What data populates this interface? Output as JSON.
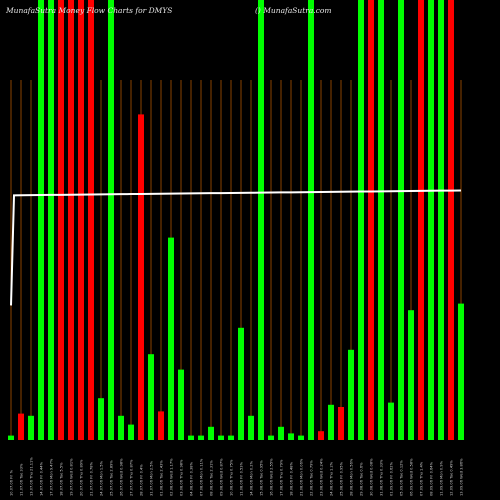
{
  "chart_data": {
    "type": "bar",
    "title": "MunafaSutra Money Flow  Charts for DMYS",
    "watermark": "() MunafaSutra.com",
    "colors": {
      "background": "#000000",
      "up": "#00ff00",
      "down": "#ff0000",
      "grid": "#8b4500",
      "line": "#ffffff"
    },
    "grid": true,
    "ylim": [
      0,
      100
    ],
    "categories": [
      "10.07.06 Fri %",
      "11.07.06 Tue 33%",
      "13.07.06 Thu 21.11%",
      "14.07.06 Fri 0.44%",
      "17.07.06 Mon 9.47%",
      "18.07.06 Tue 5.5%",
      "19.07.06 Wed 0.81%",
      "20.07.06 Thu 0.89%",
      "21.07.06 Fri 0.78%",
      "24.07.06 Mon 1.5%",
      "25.07.06 Tue 2.89%",
      "26.07.06 Wed 0.98%",
      "27.07.06 Thu 0.87%",
      "28.07.06 Fri 0.4%",
      "31.07.06 Mon 2.5%",
      "01.08.06 Tue 2.43%",
      "02.08.06 Wed 1.17%",
      "03.08.06 Thu 0.98%",
      "04.08.06 Fri 0.38%",
      "07.08.06 Mon 0.11%",
      "08.08.06 Tue 2.31%",
      "09.08.06 Wed 0.87%",
      "10.08.06 Thu 0.75%",
      "11.08.06 Fri 0.53%",
      "14.08.06 Mon 0.2%",
      "15.08.06 Tue 0.95%",
      "16.08.06 Wed 2.55%",
      "17.08.06 Thu 0.79%",
      "18.08.06 Fri 0.48%",
      "21.08.06 Mon 0.06%",
      "22.08.06 Tue 0.79%",
      "23.08.06 Wed 0.24%",
      "24.08.06 Thu 1.2%",
      "25.08.06 Fri 0.95%",
      "28.08.06 Mon 0.56%",
      "29.08.06 Tue 0.6%",
      "30.08.06 Wed 0.08%",
      "31.08.06 Thu 0.33%",
      "01.09.06 Fri 0.62%",
      "05.09.06 Tue 0.12%",
      "06.09.06 Wed 0.58%",
      "07.09.06 Thu 1.4%",
      "08.09.06 Fri 0.64%",
      "11.09.06 Mon 0.9%",
      "12.09.06 Tue 0.49%",
      "13.09.06 Wed 3.86%"
    ],
    "values": [
      1,
      6,
      5.5,
      100,
      100,
      100,
      100,
      100,
      100,
      9.5,
      100,
      5.5,
      3.5,
      74,
      19.5,
      6.5,
      46,
      16,
      1,
      1,
      3,
      1,
      1,
      25.5,
      5.5,
      100,
      1,
      3,
      1.5,
      1,
      100,
      2,
      8,
      7.5,
      20.5,
      100,
      100,
      100,
      8.5,
      100,
      29.5,
      100,
      100,
      100,
      100,
      31
    ],
    "directions": [
      "up",
      "down",
      "up",
      "up",
      "up",
      "down",
      "down",
      "down",
      "down",
      "up",
      "up",
      "up",
      "up",
      "down",
      "up",
      "down",
      "up",
      "up",
      "up",
      "up",
      "up",
      "up",
      "up",
      "up",
      "up",
      "up",
      "up",
      "up",
      "up",
      "up",
      "up",
      "down",
      "up",
      "down",
      "up",
      "up",
      "down",
      "up",
      "up",
      "up",
      "up",
      "down",
      "up",
      "up",
      "down",
      "up"
    ],
    "line": {
      "start": 55,
      "plateau": 100,
      "end": 102
    }
  }
}
